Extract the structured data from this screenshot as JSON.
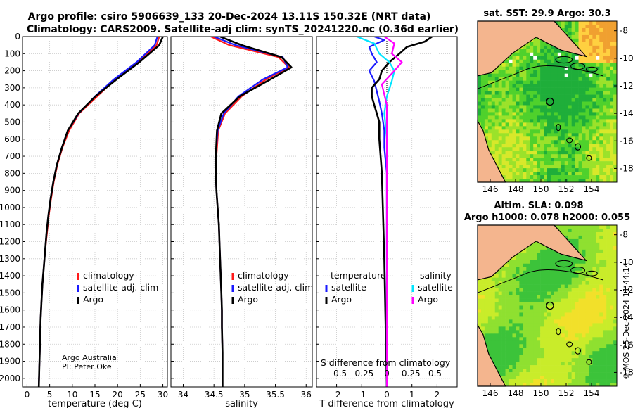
{
  "header": {
    "title_line1": "Argo profile: csiro 5906639_133 20-Dec-2024 13.11S 150.32E (NRT data)",
    "title_line2": "Climatology: CARS2009. Satellite-adj clim: synTS_20241220.nc (0.36d earlier)"
  },
  "credits": {
    "line1": "Argo Australia",
    "line2": "PI: Peter Oke"
  },
  "timestamp": "©IMOS 25-Dec-2024 11:44:14",
  "colors": {
    "climatology": "#ff1a1a",
    "satellite": "#1a1aff",
    "argo": "#000000",
    "sat_temp": "#1a1aff",
    "sat_sal": "#00e5ff",
    "argo_sal": "#ff00ff",
    "land": "#f4b58e"
  },
  "depth_axis": {
    "ticks": [
      "0",
      "100",
      "200",
      "300",
      "400",
      "500",
      "600",
      "700",
      "800",
      "900",
      "1000",
      "1100",
      "1200",
      "1300",
      "1400",
      "1500",
      "1600",
      "1700",
      "1800",
      "1900",
      "2000"
    ]
  },
  "panels": {
    "temperature": {
      "xlabel": "temperature (deg C)",
      "xticks": [
        "0",
        "5",
        "10",
        "15",
        "20",
        "25",
        "30"
      ],
      "legend": [
        "climatology",
        "satellite-adj. clim",
        "Argo"
      ]
    },
    "salinity": {
      "xlabel": "salinity",
      "xticks": [
        "34",
        "34.5",
        "35",
        "35.5",
        "36"
      ],
      "legend": [
        "climatology",
        "satellite-adj. clim",
        "Argo"
      ]
    },
    "difference": {
      "xlabel": "T difference from climatology",
      "xticks": [
        "-2",
        "-1",
        "0",
        "1",
        "2"
      ],
      "top_label": "S difference from climatology",
      "top_ticks": [
        "-0.5",
        "-0.25",
        "0",
        "0.25",
        "0.5"
      ],
      "legend_left_title": "temperature",
      "legend_right_title": "salinity",
      "legend_left": [
        "satellite",
        "Argo"
      ],
      "legend_right": [
        "satellite",
        "Argo"
      ]
    }
  },
  "maps": {
    "sst": {
      "title": "sat. SST: 29.9 Argo: 30.3"
    },
    "sla": {
      "title1": "Altim. SLA: 0.098",
      "title2": "Argo h1000: 0.078 h2000: 0.055"
    },
    "lon_ticks": [
      "146",
      "148",
      "150",
      "152",
      "154"
    ],
    "lat_ticks": [
      "-8",
      "-10",
      "-12",
      "-14",
      "-16",
      "-18"
    ]
  },
  "chart_data": [
    {
      "type": "line",
      "title": "",
      "xlabel": "temperature (deg C)",
      "ylabel": "",
      "xlim": [
        -1,
        31
      ],
      "ylim": [
        2050,
        0
      ],
      "series": [
        {
          "name": "climatology",
          "x": [
            29.2,
            28.6,
            24.5,
            19.5,
            15.5,
            11.5,
            9.3,
            7.8,
            6.7,
            5.9,
            5.3,
            4.8,
            4.4,
            4.0,
            3.7,
            3.4,
            3.2,
            3.0,
            2.9,
            2.8,
            2.7,
            2.6
          ],
          "y": [
            0,
            50,
            150,
            250,
            350,
            450,
            550,
            650,
            750,
            850,
            950,
            1050,
            1150,
            1250,
            1350,
            1450,
            1550,
            1650,
            1750,
            1850,
            1950,
            2050
          ]
        },
        {
          "name": "satellite-adj. clim",
          "x": [
            28.8,
            28.2,
            24.2,
            19.2,
            15.0,
            11.4,
            9.0,
            7.7,
            6.6,
            5.8,
            5.2,
            4.7,
            4.3,
            4.0,
            3.7,
            3.4,
            3.2,
            3.0,
            2.9,
            2.8,
            2.7,
            2.6
          ],
          "y": [
            0,
            50,
            150,
            250,
            350,
            450,
            550,
            650,
            750,
            850,
            950,
            1050,
            1150,
            1250,
            1350,
            1450,
            1550,
            1650,
            1750,
            1850,
            1950,
            2050
          ]
        },
        {
          "name": "Argo",
          "x": [
            30.0,
            29.2,
            24.8,
            19.8,
            15.1,
            11.3,
            9.0,
            7.7,
            6.6,
            5.8,
            5.2,
            4.7,
            4.3,
            4.0,
            3.7,
            3.4,
            3.2,
            3.0,
            2.9,
            2.8,
            2.7,
            2.6
          ],
          "y": [
            0,
            50,
            150,
            250,
            350,
            450,
            550,
            650,
            750,
            850,
            950,
            1050,
            1150,
            1250,
            1350,
            1450,
            1550,
            1650,
            1750,
            1850,
            1950,
            2050
          ]
        }
      ]
    },
    {
      "type": "line",
      "title": "",
      "xlabel": "salinity",
      "ylabel": "",
      "xlim": [
        33.8,
        36.1
      ],
      "ylim": [
        2050,
        0
      ],
      "series": [
        {
          "name": "climatology",
          "x": [
            34.45,
            34.75,
            35.55,
            35.72,
            35.35,
            34.95,
            34.68,
            34.57,
            34.54,
            34.53,
            34.54,
            34.56,
            34.58,
            34.59,
            34.6,
            34.61,
            34.62,
            34.63,
            34.63,
            34.64,
            34.64
          ],
          "y": [
            0,
            50,
            120,
            180,
            250,
            350,
            450,
            550,
            700,
            800,
            900,
            1000,
            1100,
            1200,
            1300,
            1400,
            1500,
            1600,
            1700,
            1850,
            2050
          ]
        },
        {
          "name": "satellite-adj. clim",
          "x": [
            34.5,
            34.85,
            35.62,
            35.7,
            35.3,
            34.9,
            34.66,
            34.56,
            34.53,
            34.53,
            34.54,
            34.56,
            34.58,
            34.59,
            34.6,
            34.61,
            34.62,
            34.63,
            34.63,
            34.64,
            34.64
          ],
          "y": [
            0,
            50,
            120,
            180,
            250,
            350,
            450,
            550,
            700,
            800,
            900,
            1000,
            1100,
            1200,
            1300,
            1400,
            1500,
            1600,
            1700,
            1850,
            2050
          ]
        },
        {
          "name": "Argo",
          "x": [
            34.6,
            34.95,
            35.6,
            35.76,
            35.42,
            34.92,
            34.62,
            34.55,
            34.53,
            34.53,
            34.54,
            34.56,
            34.58,
            34.59,
            34.6,
            34.61,
            34.62,
            34.63,
            34.63,
            34.64,
            34.64
          ],
          "y": [
            0,
            50,
            120,
            180,
            250,
            350,
            450,
            550,
            700,
            800,
            900,
            1000,
            1100,
            1200,
            1300,
            1400,
            1500,
            1600,
            1700,
            1850,
            2050
          ]
        }
      ]
    },
    {
      "type": "line",
      "title": "",
      "xlabel": "T difference from climatology",
      "ylabel": "",
      "xlim": [
        -2.8,
        2.8
      ],
      "ylim": [
        2050,
        0
      ],
      "series": [
        {
          "name": "temperature satellite",
          "x": [
            -0.5,
            -0.1,
            -0.7,
            -0.6,
            -0.4,
            -0.7,
            -0.5,
            -0.4,
            -0.3,
            -0.2,
            -0.1,
            -0.1,
            0.0,
            0.0
          ],
          "y": [
            0,
            20,
            60,
            100,
            150,
            200,
            260,
            320,
            380,
            450,
            550,
            650,
            800,
            2050
          ]
        },
        {
          "name": "temperature Argo",
          "x": [
            1.8,
            1.5,
            0.8,
            0.5,
            0.1,
            -0.2,
            -0.3,
            -0.6,
            -0.6,
            -0.5,
            -0.4,
            -0.3,
            -0.3,
            -0.2,
            -0.1,
            0.0
          ],
          "y": [
            0,
            30,
            60,
            100,
            150,
            200,
            250,
            300,
            350,
            400,
            450,
            500,
            600,
            800,
            1300,
            2050
          ]
        },
        {
          "name": "salinity satellite",
          "x": [
            -1.2,
            -0.5,
            -0.3,
            0.1,
            0.3,
            0.2,
            0.0,
            -0.1,
            0.0,
            0.0
          ],
          "y": [
            0,
            40,
            100,
            150,
            200,
            260,
            350,
            450,
            600,
            2050
          ]
        },
        {
          "name": "salinity Argo",
          "x": [
            -0.1,
            0.3,
            0.2,
            0.6,
            0.3,
            -0.2,
            0.0,
            0.0
          ],
          "y": [
            0,
            40,
            100,
            150,
            200,
            280,
            400,
            2050
          ]
        }
      ]
    }
  ]
}
